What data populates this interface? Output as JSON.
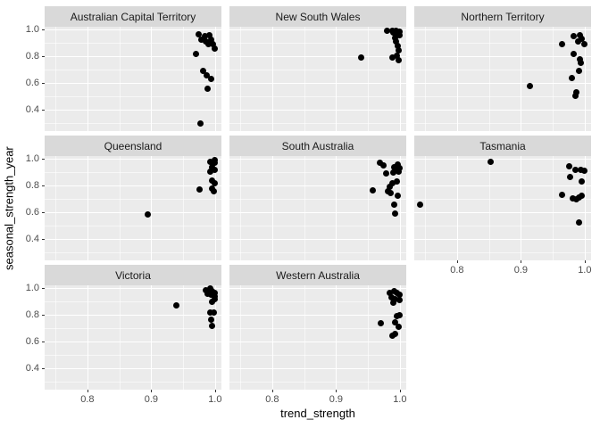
{
  "chart_data": {
    "type": "scatter",
    "title": "",
    "xlabel": "trend_strength",
    "ylabel": "seasonal_strength_year",
    "x_ticks": [
      0.8,
      0.9,
      1.0
    ],
    "y_ticks": [
      1.0,
      0.8,
      0.6,
      0.4
    ],
    "x_minor_ticks": [
      0.75,
      0.85,
      0.95
    ],
    "y_minor_ticks": [
      0.3,
      0.5,
      0.7,
      0.9
    ],
    "xlim": [
      0.733,
      1.01
    ],
    "ylim": [
      0.243,
      1.023
    ],
    "grid": true,
    "legend": "none",
    "point_color": "#000000",
    "panel_bg": "#EBEBEB",
    "strip_bg": "#D9D9D9",
    "grid_color": "#FFFFFF",
    "facets": [
      {
        "label": "Australian Capital Territory",
        "row": 0,
        "col": 0,
        "x_axis": false,
        "y_axis": true,
        "points": [
          [
            0.974,
            0.968
          ],
          [
            0.984,
            0.952
          ],
          [
            0.991,
            0.957
          ],
          [
            0.994,
            0.928
          ],
          [
            0.979,
            0.928
          ],
          [
            0.985,
            0.912
          ],
          [
            0.997,
            0.895
          ],
          [
            0.99,
            0.89
          ],
          [
            0.999,
            0.857
          ],
          [
            0.97,
            0.819
          ],
          [
            0.981,
            0.69
          ],
          [
            0.987,
            0.663
          ],
          [
            0.994,
            0.63
          ],
          [
            0.989,
            0.561
          ],
          [
            0.977,
            0.301
          ]
        ]
      },
      {
        "label": "New South Wales",
        "row": 0,
        "col": 1,
        "x_axis": false,
        "y_axis": false,
        "points": [
          [
            0.98,
            0.99
          ],
          [
            0.989,
            0.995
          ],
          [
            0.994,
            0.99
          ],
          [
            0.999,
            0.985
          ],
          [
            0.99,
            0.978
          ],
          [
            0.996,
            0.968
          ],
          [
            1.0,
            0.957
          ],
          [
            0.993,
            0.943
          ],
          [
            0.994,
            0.91
          ],
          [
            0.997,
            0.877
          ],
          [
            0.998,
            0.845
          ],
          [
            0.996,
            0.805
          ],
          [
            0.989,
            0.79
          ],
          [
            0.998,
            0.772
          ],
          [
            0.94,
            0.792
          ]
        ]
      },
      {
        "label": "Northern Territory",
        "row": 0,
        "col": 2,
        "x_axis": false,
        "y_axis": false,
        "points": [
          [
            0.983,
            0.952
          ],
          [
            0.993,
            0.961
          ],
          [
            0.995,
            0.935
          ],
          [
            0.99,
            0.912
          ],
          [
            0.999,
            0.895
          ],
          [
            0.965,
            0.89
          ],
          [
            0.983,
            0.823
          ],
          [
            0.993,
            0.779
          ],
          [
            0.994,
            0.752
          ],
          [
            0.991,
            0.695
          ],
          [
            0.98,
            0.641
          ],
          [
            0.987,
            0.535
          ],
          [
            0.985,
            0.508
          ],
          [
            0.914,
            0.579
          ]
        ]
      },
      {
        "label": "Queensland",
        "row": 1,
        "col": 0,
        "x_axis": false,
        "y_axis": true,
        "points": [
          [
            0.999,
            0.992
          ],
          [
            0.993,
            0.979
          ],
          [
            1.0,
            0.975
          ],
          [
            0.996,
            0.941
          ],
          [
            1.0,
            0.919
          ],
          [
            0.993,
            0.905
          ],
          [
            0.996,
            0.843
          ],
          [
            0.999,
            0.821
          ],
          [
            0.995,
            0.781
          ],
          [
            0.976,
            0.772
          ],
          [
            0.998,
            0.761
          ],
          [
            0.895,
            0.585
          ]
        ]
      },
      {
        "label": "South Australia",
        "row": 1,
        "col": 1,
        "x_axis": false,
        "y_axis": false,
        "points": [
          [
            0.969,
            0.972
          ],
          [
            0.975,
            0.955
          ],
          [
            0.997,
            0.957
          ],
          [
            0.991,
            0.941
          ],
          [
            1.0,
            0.935
          ],
          [
            0.994,
            0.919
          ],
          [
            0.998,
            0.905
          ],
          [
            0.99,
            0.901
          ],
          [
            0.979,
            0.89
          ],
          [
            0.995,
            0.835
          ],
          [
            0.989,
            0.823
          ],
          [
            0.984,
            0.795
          ],
          [
            0.958,
            0.768
          ],
          [
            0.982,
            0.757
          ],
          [
            0.985,
            0.745
          ],
          [
            0.997,
            0.728
          ],
          [
            0.991,
            0.657
          ],
          [
            0.993,
            0.59
          ]
        ]
      },
      {
        "label": "Tasmania",
        "row": 1,
        "col": 2,
        "x_axis": true,
        "y_axis": false,
        "points": [
          [
            0.853,
            0.979
          ],
          [
            0.742,
            0.661
          ],
          [
            0.976,
            0.945
          ],
          [
            0.994,
            0.923
          ],
          [
            0.986,
            0.919
          ],
          [
            0.999,
            0.912
          ],
          [
            0.977,
            0.868
          ],
          [
            0.995,
            0.835
          ],
          [
            0.996,
            0.728
          ],
          [
            0.964,
            0.735
          ],
          [
            0.991,
            0.712
          ],
          [
            0.981,
            0.705
          ],
          [
            0.987,
            0.701
          ],
          [
            0.991,
            0.528
          ]
        ]
      },
      {
        "label": "Victoria",
        "row": 2,
        "col": 0,
        "x_axis": true,
        "y_axis": true,
        "points": [
          [
            0.985,
            0.985
          ],
          [
            0.992,
            0.997
          ],
          [
            0.996,
            0.983
          ],
          [
            1.0,
            0.968
          ],
          [
            0.988,
            0.957
          ],
          [
            0.994,
            0.95
          ],
          [
            1.0,
            0.941
          ],
          [
            0.999,
            0.917
          ],
          [
            0.996,
            0.901
          ],
          [
            0.939,
            0.872
          ],
          [
            0.993,
            0.823
          ],
          [
            0.998,
            0.817
          ],
          [
            0.994,
            0.768
          ],
          [
            0.995,
            0.719
          ]
        ]
      },
      {
        "label": "Western Australia",
        "row": 2,
        "col": 1,
        "x_axis": true,
        "y_axis": false,
        "points": [
          [
            0.991,
            0.983
          ],
          [
            0.984,
            0.968
          ],
          [
            0.996,
            0.968
          ],
          [
            1.0,
            0.95
          ],
          [
            0.987,
            0.935
          ],
          [
            0.993,
            0.923
          ],
          [
            1.0,
            0.912
          ],
          [
            0.99,
            0.89
          ],
          [
            1.0,
            0.801
          ],
          [
            0.996,
            0.79
          ],
          [
            0.97,
            0.739
          ],
          [
            0.993,
            0.745
          ],
          [
            0.998,
            0.712
          ],
          [
            0.993,
            0.661
          ],
          [
            0.989,
            0.645
          ]
        ]
      }
    ]
  }
}
